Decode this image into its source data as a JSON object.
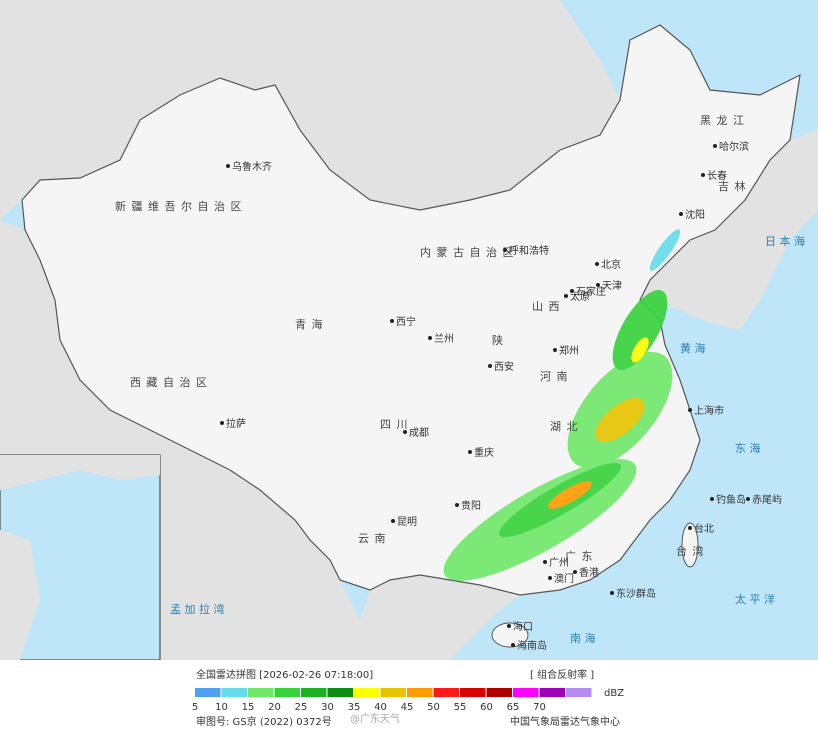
{
  "title": "全国雷达拼图 [2026-02-26 07:18:00]",
  "product": "[ 组合反射率 ]",
  "legend": {
    "colors": [
      "#4ea0f0",
      "#66dceb",
      "#6fe86a",
      "#36d23a",
      "#1cb022",
      "#0b8c12",
      "#ffff00",
      "#e6c400",
      "#ff9a00",
      "#ff1a1a",
      "#d80000",
      "#b00000",
      "#ff00ff",
      "#9c00b8",
      "#b48cf0"
    ],
    "labels": [
      5,
      10,
      15,
      20,
      25,
      30,
      35,
      40,
      45,
      50,
      55,
      60,
      65,
      70
    ],
    "unit": "dBZ"
  },
  "map": {
    "regions": [
      "新 疆 维 吾 尔 自 治 区",
      "西 藏 自 治 区",
      "青 海",
      "四 川",
      "云 南",
      "黑 龙 江",
      "吉 林",
      "内 蒙 古 自 治 区",
      "陕",
      "湖 北",
      "广 东",
      "台 湾",
      "山 西",
      "河 南"
    ],
    "cities": [
      "乌鲁木齐",
      "拉萨",
      "西宁",
      "兰州",
      "成都",
      "重庆",
      "西安",
      "太原",
      "石家庄",
      "北京",
      "天津",
      "呼和浩特",
      "郑州",
      "上海市",
      "长春",
      "哈尔滨",
      "沈阳",
      "昆明",
      "贵阳",
      "广州",
      "香港",
      "澳门",
      "海口",
      "台北",
      "钓鱼岛",
      "赤尾屿",
      "东沙群岛",
      "海南岛"
    ],
    "seas": [
      "黄 海",
      "东 海",
      "南 海",
      "太 平 洋",
      "日 本 海",
      "孟 加 拉 湾"
    ]
  },
  "footer": {
    "approval": "审图号: GS京 (2022) 0372号",
    "source": "中国气象局雷达气象中心",
    "watermark": "@广东天气"
  }
}
